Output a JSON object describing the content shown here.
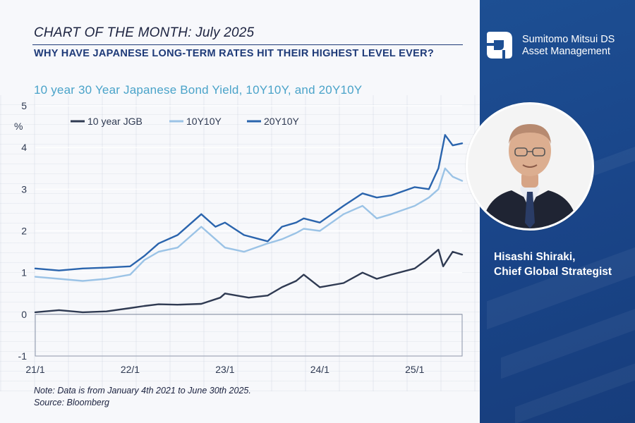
{
  "header": {
    "title": "CHART OF THE MONTH: July 2025",
    "subtitle": "WHY HAVE JAPANESE LONG-TERM RATES HIT THEIR HIGHEST LEVEL EVER?"
  },
  "brand": {
    "line1": "Sumitomo Mitsui DS",
    "line2": "Asset Management"
  },
  "person": {
    "name": "Hisashi Shiraki,",
    "role": "Chief Global Strategist"
  },
  "footnote": {
    "note": "Note: Data is from January 4th 2021 to June 30th 2025.",
    "source": "Source: Bloomberg"
  },
  "colors": {
    "jgb10": "#2f3a52",
    "y10y10": "#9bc3e6",
    "y20y10": "#2a64ad",
    "accent": "#1e3a78",
    "title_blue": "#4aa3c9"
  },
  "chart_data": {
    "type": "line",
    "title": "10 year 30 Year Japanese Bond Yield, 10Y10Y, and 20Y10Y",
    "ylabel": "%",
    "ylim": [
      -1,
      5
    ],
    "yticks": [
      "5",
      "4",
      "3",
      "2",
      "1",
      "0",
      "-1"
    ],
    "xlim": [
      2021.0,
      2025.5
    ],
    "xticks": [
      {
        "label": "21/1",
        "x": 2021.0
      },
      {
        "label": "22/1",
        "x": 2022.0
      },
      {
        "label": "23/1",
        "x": 2023.0
      },
      {
        "label": "24/1",
        "x": 2024.0
      },
      {
        "label": "25/1",
        "x": 2025.0
      }
    ],
    "legend_position": "top-left",
    "series": [
      {
        "name": "10 year JGB",
        "x": [
          2021.0,
          2021.25,
          2021.5,
          2021.75,
          2022.0,
          2022.15,
          2022.3,
          2022.5,
          2022.75,
          2022.95,
          2023.0,
          2023.25,
          2023.45,
          2023.6,
          2023.75,
          2023.83,
          2024.0,
          2024.25,
          2024.45,
          2024.6,
          2024.75,
          2025.0,
          2025.12,
          2025.25,
          2025.3,
          2025.4,
          2025.5
        ],
        "y": [
          0.05,
          0.1,
          0.05,
          0.07,
          0.15,
          0.2,
          0.24,
          0.23,
          0.25,
          0.4,
          0.5,
          0.4,
          0.45,
          0.65,
          0.8,
          0.95,
          0.65,
          0.75,
          1.0,
          0.85,
          0.95,
          1.1,
          1.3,
          1.55,
          1.15,
          1.5,
          1.43
        ]
      },
      {
        "name": "10Y10Y",
        "x": [
          2021.0,
          2021.25,
          2021.5,
          2021.75,
          2022.0,
          2022.15,
          2022.3,
          2022.5,
          2022.75,
          2022.9,
          2023.0,
          2023.2,
          2023.45,
          2023.6,
          2023.75,
          2023.83,
          2024.0,
          2024.25,
          2024.45,
          2024.6,
          2024.75,
          2025.0,
          2025.15,
          2025.25,
          2025.32,
          2025.4,
          2025.5
        ],
        "y": [
          0.9,
          0.85,
          0.8,
          0.85,
          0.95,
          1.3,
          1.5,
          1.6,
          2.1,
          1.8,
          1.6,
          1.5,
          1.7,
          1.8,
          1.95,
          2.05,
          2.0,
          2.4,
          2.6,
          2.3,
          2.4,
          2.6,
          2.8,
          3.0,
          3.5,
          3.3,
          3.2
        ]
      },
      {
        "name": "20Y10Y",
        "x": [
          2021.0,
          2021.25,
          2021.5,
          2021.75,
          2022.0,
          2022.15,
          2022.3,
          2022.5,
          2022.75,
          2022.9,
          2023.0,
          2023.2,
          2023.45,
          2023.6,
          2023.75,
          2023.83,
          2024.0,
          2024.25,
          2024.45,
          2024.6,
          2024.75,
          2025.0,
          2025.15,
          2025.25,
          2025.32,
          2025.4,
          2025.5
        ],
        "y": [
          1.1,
          1.05,
          1.1,
          1.12,
          1.15,
          1.4,
          1.7,
          1.9,
          2.4,
          2.1,
          2.2,
          1.9,
          1.75,
          2.1,
          2.2,
          2.3,
          2.2,
          2.6,
          2.9,
          2.8,
          2.85,
          3.05,
          3.0,
          3.5,
          4.3,
          4.05,
          4.1
        ]
      }
    ]
  }
}
